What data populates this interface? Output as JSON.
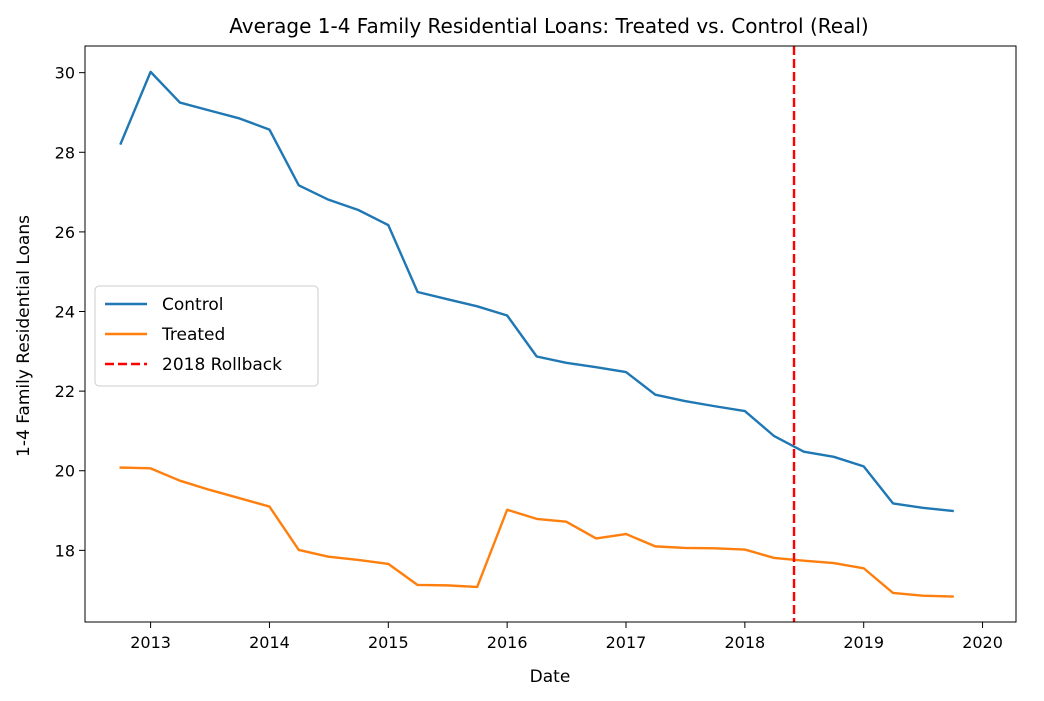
{
  "chart_data": {
    "type": "line",
    "title": "Average 1-4 Family Residential Loans: Treated vs. Control (Real)",
    "xlabel": "Date",
    "ylabel": "1-4 Family Residential Loans",
    "x_tick_labels": [
      "2013",
      "2014",
      "2015",
      "2016",
      "2017",
      "2018",
      "2019",
      "2020"
    ],
    "y_tick_labels": [
      "18",
      "20",
      "22",
      "24",
      "26",
      "28",
      "30"
    ],
    "xlim": [
      "2012-06-13",
      "2020-04-13"
    ],
    "ylim": [
      16.2,
      30.67
    ],
    "x": [
      "2012-10-01",
      "2013-01-01",
      "2013-04-01",
      "2013-07-01",
      "2013-10-01",
      "2014-01-01",
      "2014-04-01",
      "2014-07-01",
      "2014-10-01",
      "2015-01-01",
      "2015-04-01",
      "2015-07-01",
      "2015-10-01",
      "2016-01-01",
      "2016-04-01",
      "2016-07-01",
      "2016-10-01",
      "2017-01-01",
      "2017-04-01",
      "2017-07-01",
      "2017-10-01",
      "2018-01-01",
      "2018-04-01",
      "2018-07-01",
      "2018-10-01",
      "2019-01-01",
      "2019-04-01",
      "2019-07-01",
      "2019-10-01"
    ],
    "series": [
      {
        "name": "Control",
        "color": "#1f77b4",
        "style": "solid",
        "values": [
          28.22,
          30.02,
          29.25,
          29.05,
          28.85,
          28.57,
          27.17,
          26.81,
          26.55,
          26.17,
          24.49,
          24.31,
          24.13,
          23.9,
          22.87,
          22.71,
          22.6,
          22.48,
          21.91,
          21.75,
          21.62,
          21.5,
          20.87,
          20.48,
          20.35,
          20.11,
          19.18,
          19.07,
          18.99
        ]
      },
      {
        "name": "Treated",
        "color": "#ff7f0e",
        "style": "solid",
        "values": [
          20.08,
          20.06,
          19.75,
          19.52,
          19.31,
          19.1,
          18.01,
          17.84,
          17.76,
          17.66,
          17.13,
          17.12,
          17.08,
          19.02,
          18.79,
          18.72,
          18.3,
          18.41,
          18.1,
          18.06,
          18.05,
          18.02,
          17.81,
          17.74,
          17.68,
          17.55,
          16.93,
          16.86,
          16.84
        ]
      }
    ],
    "vlines": [
      {
        "name": "2018 Rollback",
        "x": "2018-06-01",
        "color": "#ff0000",
        "style": "dashed"
      }
    ],
    "legend": {
      "position": "center-left",
      "entries": [
        {
          "label": "Control",
          "color": "#1f77b4",
          "style": "solid"
        },
        {
          "label": "Treated",
          "color": "#ff7f0e",
          "style": "solid"
        },
        {
          "label": "2018 Rollback",
          "color": "#ff0000",
          "style": "dashed"
        }
      ]
    },
    "grid": false
  }
}
